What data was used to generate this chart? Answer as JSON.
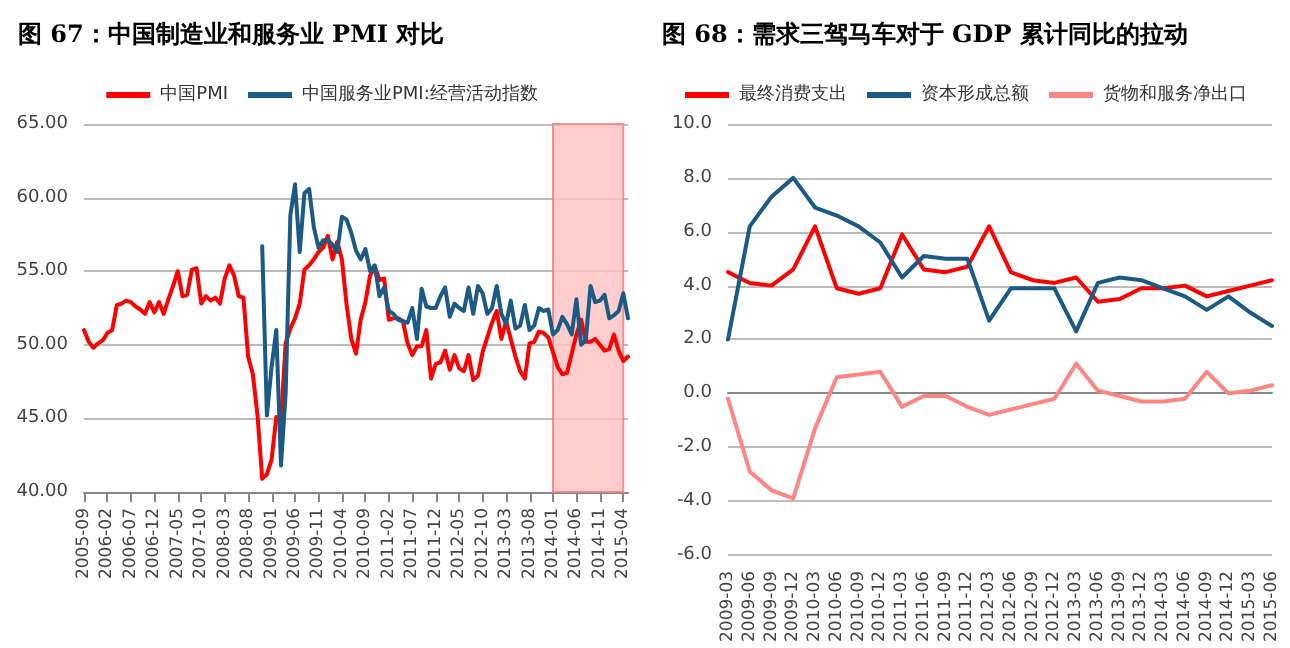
{
  "chart_data": [
    {
      "type": "line",
      "title": "图 67：中国制造业和服务业 PMI 对比",
      "categories": [
        "2005-09",
        null,
        null,
        null,
        null,
        "2006-02",
        null,
        null,
        null,
        null,
        "2006-07",
        null,
        null,
        null,
        null,
        "2006-12",
        null,
        null,
        null,
        null,
        "2007-05",
        null,
        null,
        null,
        null,
        "2007-10",
        null,
        null,
        null,
        null,
        "2008-03",
        null,
        null,
        null,
        null,
        "2008-08",
        null,
        null,
        null,
        null,
        "2009-01",
        null,
        null,
        null,
        null,
        "2009-06",
        null,
        null,
        null,
        null,
        "2009-11",
        null,
        null,
        null,
        null,
        "2010-04",
        null,
        null,
        null,
        null,
        "2010-09",
        null,
        null,
        null,
        null,
        "2011-02",
        null,
        null,
        null,
        null,
        "2011-07",
        null,
        null,
        null,
        null,
        "2011-12",
        null,
        null,
        null,
        null,
        "2012-05",
        null,
        null,
        null,
        null,
        "2012-10",
        null,
        null,
        null,
        null,
        "2013-03",
        null,
        null,
        null,
        null,
        "2013-08",
        null,
        null,
        null,
        null,
        "2014-01",
        null,
        null,
        null,
        null,
        "2014-06",
        null,
        null,
        null,
        null,
        "2014-11",
        null,
        null,
        null,
        null,
        "2015-04",
        null
      ],
      "series": [
        {
          "name": "中国PMI",
          "color": "#ff0000",
          "values": [
            51.0,
            50.2,
            49.8,
            50.1,
            50.3,
            50.8,
            51.0,
            52.7,
            52.8,
            53.0,
            52.9,
            52.6,
            52.4,
            52.1,
            52.9,
            52.2,
            52.9,
            52.1,
            53.1,
            54.0,
            55.0,
            53.3,
            53.4,
            55.1,
            55.2,
            52.8,
            53.3,
            53.0,
            53.2,
            52.8,
            54.5,
            55.4,
            54.7,
            53.3,
            53.2,
            49.2,
            48.0,
            45.2,
            40.9,
            41.2,
            42.2,
            45.1,
            44.8,
            50.1,
            51.1,
            51.8,
            52.8,
            55.1,
            55.4,
            55.8,
            56.3,
            56.6,
            57.4,
            55.8,
            57.0,
            55.8,
            52.7,
            50.4,
            49.4,
            51.7,
            52.9,
            54.7,
            55.3,
            54.4,
            54.5,
            51.7,
            51.8,
            51.8,
            51.6,
            50.1,
            49.3,
            49.9,
            49.9,
            51.0,
            47.7,
            48.7,
            48.8,
            49.6,
            48.3,
            49.3,
            48.4,
            48.2,
            49.3,
            47.6,
            47.9,
            49.5,
            50.5,
            51.5,
            52.3,
            50.4,
            51.6,
            50.4,
            49.2,
            48.2,
            47.7,
            50.1,
            50.2,
            50.9,
            50.8,
            50.5,
            49.5,
            48.5,
            48.0,
            48.1,
            49.4,
            50.7,
            51.7,
            50.2,
            50.2,
            50.4,
            50.0,
            49.6,
            49.7,
            50.7,
            49.6,
            48.9,
            49.2
          ]
        },
        {
          "name": "中国服务业PMI:经营活动指数",
          "color": "#1b5a84",
          "values": [
            null,
            null,
            null,
            null,
            null,
            null,
            null,
            null,
            null,
            null,
            null,
            null,
            null,
            null,
            null,
            null,
            null,
            null,
            null,
            null,
            null,
            null,
            null,
            null,
            null,
            null,
            null,
            null,
            null,
            null,
            null,
            null,
            null,
            null,
            null,
            null,
            null,
            null,
            56.7,
            45.2,
            48.5,
            51.0,
            41.8,
            46.7,
            58.8,
            60.9,
            56.3,
            60.3,
            60.6,
            58.0,
            56.6,
            57.1,
            57.1,
            56.8,
            56.3,
            58.7,
            58.5,
            57.6,
            56.4,
            55.8,
            56.5,
            55.0,
            55.4,
            53.3,
            53.9,
            52.3,
            52.1,
            51.7,
            51.6,
            51.5,
            52.5,
            50.4,
            53.8,
            52.6,
            52.5,
            52.5,
            53.3,
            53.9,
            51.9,
            52.8,
            52.5,
            52.3,
            53.9,
            52.1,
            54.0,
            53.5,
            52.1,
            52.5,
            54.0,
            52.1,
            51.4,
            53.0,
            51.1,
            51.3,
            52.7,
            51.0,
            51.3,
            52.5,
            52.3,
            52.4,
            50.7,
            51.0,
            51.9,
            51.4,
            50.7,
            53.1,
            50.0,
            50.3,
            54.0,
            52.9,
            53.0,
            53.4,
            51.8,
            52.0,
            52.3,
            53.5,
            51.8
          ]
        }
      ],
      "ylim": [
        40,
        65
      ],
      "yticks": [
        {
          "value": 40,
          "label": "40.00"
        },
        {
          "value": 45,
          "label": "45.00"
        },
        {
          "value": 50,
          "label": "50.00"
        },
        {
          "value": 55,
          "label": "55.00"
        },
        {
          "value": 60,
          "label": "60.00"
        },
        {
          "value": 65,
          "label": "65.00"
        }
      ],
      "bands": [
        {
          "axis": "x",
          "from": "2014-01",
          "to": "2015-04",
          "color": "#ffc4c4"
        }
      ],
      "grid": "y",
      "legend": "top",
      "marker": "none",
      "line_style": "solid"
    },
    {
      "type": "line",
      "title": "图 68：需求三驾马车对于 GDP 累计同比的拉动",
      "categories": [
        "2009-03",
        "2009-06",
        "2009-09",
        "2009-12",
        "2010-03",
        "2010-06",
        "2010-09",
        "2010-12",
        "2011-03",
        "2011-06",
        "2011-09",
        "2011-12",
        "2012-03",
        "2012-06",
        "2012-09",
        "2012-12",
        "2013-03",
        "2013-06",
        "2013-09",
        "2013-12",
        "2014-03",
        "2014-06",
        "2014-09",
        "2014-12",
        "2015-03",
        "2015-06"
      ],
      "series": [
        {
          "name": "最终消费支出",
          "color": "#ff0000",
          "values": [
            4.5,
            4.1,
            4.0,
            4.6,
            6.2,
            3.9,
            3.7,
            3.9,
            5.9,
            4.6,
            4.5,
            4.7,
            6.2,
            4.5,
            4.2,
            4.1,
            4.3,
            3.4,
            3.5,
            3.9,
            3.9,
            4.0,
            3.6,
            3.8,
            4.0,
            4.2
          ]
        },
        {
          "name": "资本形成总额",
          "color": "#1b5a84",
          "values": [
            2.0,
            6.2,
            7.3,
            8.0,
            6.9,
            6.6,
            6.2,
            5.6,
            4.3,
            5.1,
            5.0,
            5.0,
            2.7,
            3.9,
            3.9,
            3.9,
            2.3,
            4.1,
            4.3,
            4.2,
            3.9,
            3.6,
            3.1,
            3.6,
            3.0,
            2.5
          ]
        },
        {
          "name": "货物和服务净出口",
          "color": "#ff8585",
          "values": [
            -0.2,
            -2.9,
            -3.6,
            -3.9,
            -1.3,
            0.6,
            0.7,
            0.8,
            -0.5,
            -0.1,
            -0.1,
            -0.5,
            -0.8,
            -0.6,
            -0.4,
            -0.2,
            1.1,
            0.1,
            -0.1,
            -0.3,
            -0.3,
            -0.2,
            0.8,
            0.0,
            0.1,
            0.3
          ]
        }
      ],
      "ylim": [
        -6,
        10
      ],
      "yticks": [
        {
          "value": -6,
          "label": "-6.0"
        },
        {
          "value": -4,
          "label": "-4.0"
        },
        {
          "value": -2,
          "label": "-2.0"
        },
        {
          "value": 0,
          "label": "0.0"
        },
        {
          "value": 2,
          "label": "2.0"
        },
        {
          "value": 4,
          "label": "4.0"
        },
        {
          "value": 6,
          "label": "6.0"
        },
        {
          "value": 8,
          "label": "8.0"
        },
        {
          "value": 10,
          "label": "10.0"
        }
      ],
      "grid": "y",
      "legend": "top",
      "marker": "none",
      "line_style": "solid"
    }
  ]
}
